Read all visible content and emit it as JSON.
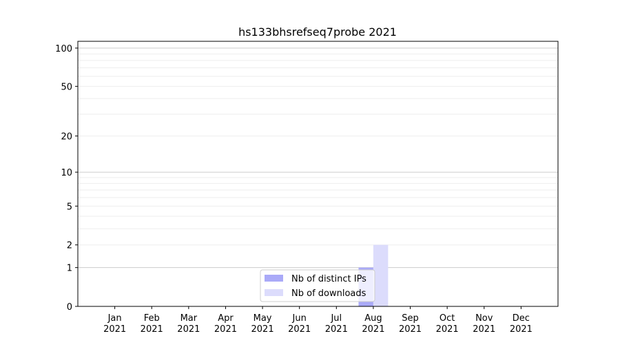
{
  "chart_data": {
    "type": "bar",
    "title": "hs133bhsrefseq7probe 2021",
    "categories": [
      "Jan\n2021",
      "Feb\n2021",
      "Mar\n2021",
      "Apr\n2021",
      "May\n2021",
      "Jun\n2021",
      "Jul\n2021",
      "Aug\n2021",
      "Sep\n2021",
      "Oct\n2021",
      "Nov\n2021",
      "Dec\n2021"
    ],
    "series": [
      {
        "name": "Nb of distinct IPs",
        "color": "#aaaaf8",
        "values": [
          0,
          0,
          0,
          0,
          0,
          0,
          0,
          1,
          0,
          0,
          0,
          0
        ]
      },
      {
        "name": "Nb of downloads",
        "color": "#dcdcfc",
        "values": [
          0,
          0,
          0,
          0,
          0,
          0,
          0,
          2,
          0,
          0,
          0,
          0
        ]
      }
    ],
    "yscale": "log(1+y)",
    "yticks": [
      0,
      1,
      2,
      5,
      10,
      20,
      50,
      100
    ],
    "ylim": [
      0,
      113
    ],
    "grid": true,
    "legend": "bottom-center",
    "xlabel": "",
    "ylabel": ""
  }
}
